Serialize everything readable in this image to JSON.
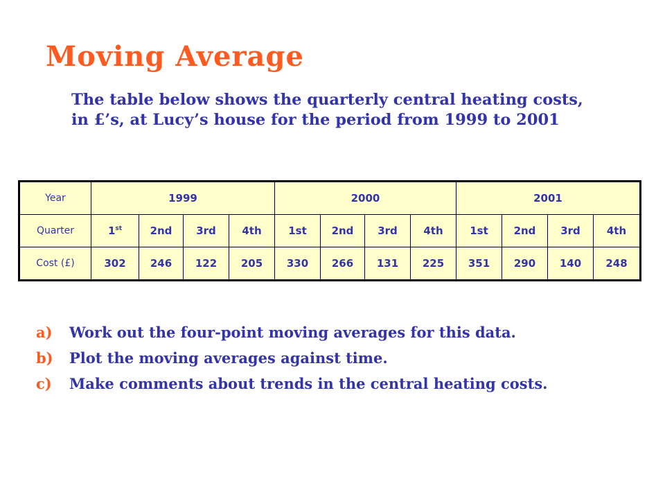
{
  "title": "Moving Average",
  "intro": "The table below shows the quarterly central heating costs, in £’s, at Lucy’s house for the period from 1999 to 2001",
  "table": {
    "year_label": "Year",
    "years": [
      "1999",
      "2000",
      "2001"
    ],
    "quarter_label": "Quarter",
    "first_quarter_num": "1",
    "first_quarter_sup": "st",
    "quarters": [
      "2nd",
      "3rd",
      "4th",
      "1st",
      "2nd",
      "3rd",
      "4th",
      "1st",
      "2nd",
      "3rd",
      "4th"
    ],
    "cost_label": "Cost (£)",
    "costs": [
      "302",
      "246",
      "122",
      "205",
      "330",
      "266",
      "131",
      "225",
      "351",
      "290",
      "140",
      "248"
    ]
  },
  "questions": [
    {
      "letter": "a)",
      "text": "Work out the four-point moving averages for this data."
    },
    {
      "letter": "b)",
      "text": "Plot the moving averages against time."
    },
    {
      "letter": "c)",
      "text": "Make comments about trends in the central heating costs."
    }
  ],
  "colors": {
    "title": "#ff5a1f",
    "text": "#3333aa",
    "table_bg": "#ffffcc"
  }
}
